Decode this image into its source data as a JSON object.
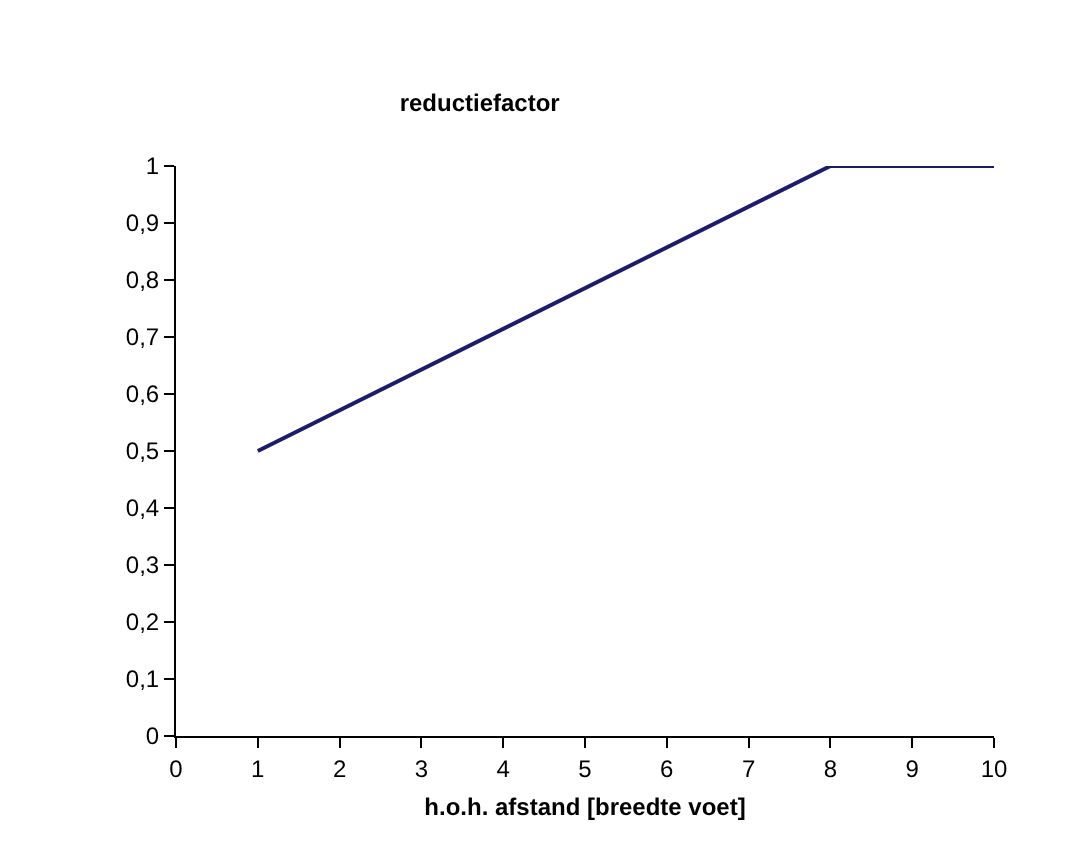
{
  "chart_data": {
    "type": "line",
    "title": "reductiefactor",
    "xlabel": "h.o.h. afstand [breedte voet]",
    "x": [
      1,
      8,
      10
    ],
    "series": [
      {
        "color": "#1c1c6b",
        "values": [
          0.5,
          1,
          1
        ]
      }
    ],
    "xlim": [
      0,
      10
    ],
    "xticks": [
      0,
      1,
      2,
      3,
      4,
      5,
      6,
      7,
      8,
      9,
      10
    ],
    "ylim": [
      0,
      1
    ],
    "yticks": [
      0,
      {
        "value": 0.1,
        "label": "0,1"
      },
      {
        "value": 0.2,
        "label": "0,2"
      },
      {
        "value": 0.3,
        "label": "0,3"
      },
      {
        "value": 0.4,
        "label": "0,4"
      },
      {
        "value": 0.5,
        "label": "0,5"
      },
      {
        "value": 0.6,
        "label": "0,6"
      },
      {
        "value": 0.7,
        "label": "0,7"
      },
      {
        "value": 0.8,
        "label": "0,8"
      },
      {
        "value": 0.9,
        "label": "0,9"
      },
      1
    ],
    "grid": false,
    "marker": "none",
    "line_style": "solid"
  }
}
